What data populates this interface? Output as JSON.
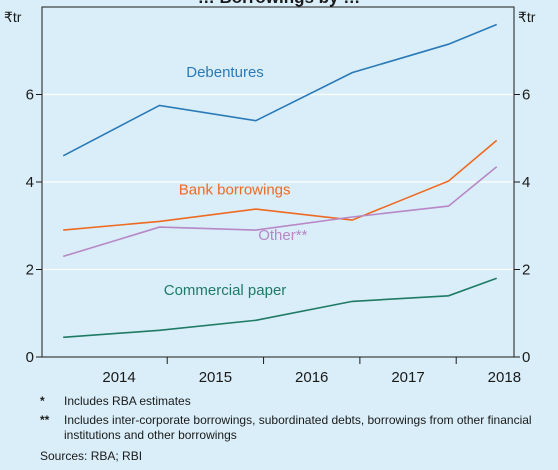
{
  "chart_data": {
    "type": "line",
    "title": "… Borrowings by …",
    "units_left": "₹tr",
    "units_right": "₹tr",
    "ylim": [
      0,
      8
    ],
    "yticks": [
      0,
      2,
      4,
      6
    ],
    "xlim": [
      2013.7,
      2018.6
    ],
    "xticks": [
      "2014",
      "2015",
      "2016",
      "2017",
      "2018"
    ],
    "grid": true,
    "series": [
      {
        "name": "Debentures",
        "color": "#2a7ab8",
        "x": [
          2013.92,
          2014.92,
          2015.92,
          2016.92,
          2017.92,
          2018.42
        ],
        "y": [
          4.6,
          5.75,
          5.4,
          6.5,
          7.15,
          7.6
        ],
        "label_at": [
          2015.6,
          6.4
        ]
      },
      {
        "name": "Bank borrowings",
        "color": "#ee6a22",
        "x": [
          2013.92,
          2014.92,
          2015.92,
          2016.92,
          2017.92,
          2018.42
        ],
        "y": [
          2.9,
          3.1,
          3.38,
          3.13,
          4.02,
          4.95
        ],
        "label_at": [
          2015.7,
          3.72
        ]
      },
      {
        "name": "Other**",
        "color": "#b887c6",
        "x": [
          2013.92,
          2014.92,
          2015.92,
          2016.92,
          2017.92,
          2018.42
        ],
        "y": [
          2.3,
          2.97,
          2.9,
          3.2,
          3.45,
          4.35
        ],
        "label_at": [
          2016.2,
          2.67
        ]
      },
      {
        "name": "Commercial paper",
        "color": "#1f7a66",
        "x": [
          2013.92,
          2014.92,
          2015.92,
          2016.92,
          2017.92,
          2018.42
        ],
        "y": [
          0.45,
          0.61,
          0.84,
          1.27,
          1.4,
          1.8
        ],
        "label_at": [
          2015.6,
          1.42
        ]
      }
    ]
  },
  "notes": [
    {
      "mark": "*",
      "text": "Includes RBA estimates"
    },
    {
      "mark": "**",
      "text": "Includes inter-corporate borrowings, subordinated debts, borrowings from other financial institutions and other borrowings"
    }
  ],
  "sources": "Sources: RBA; RBI"
}
